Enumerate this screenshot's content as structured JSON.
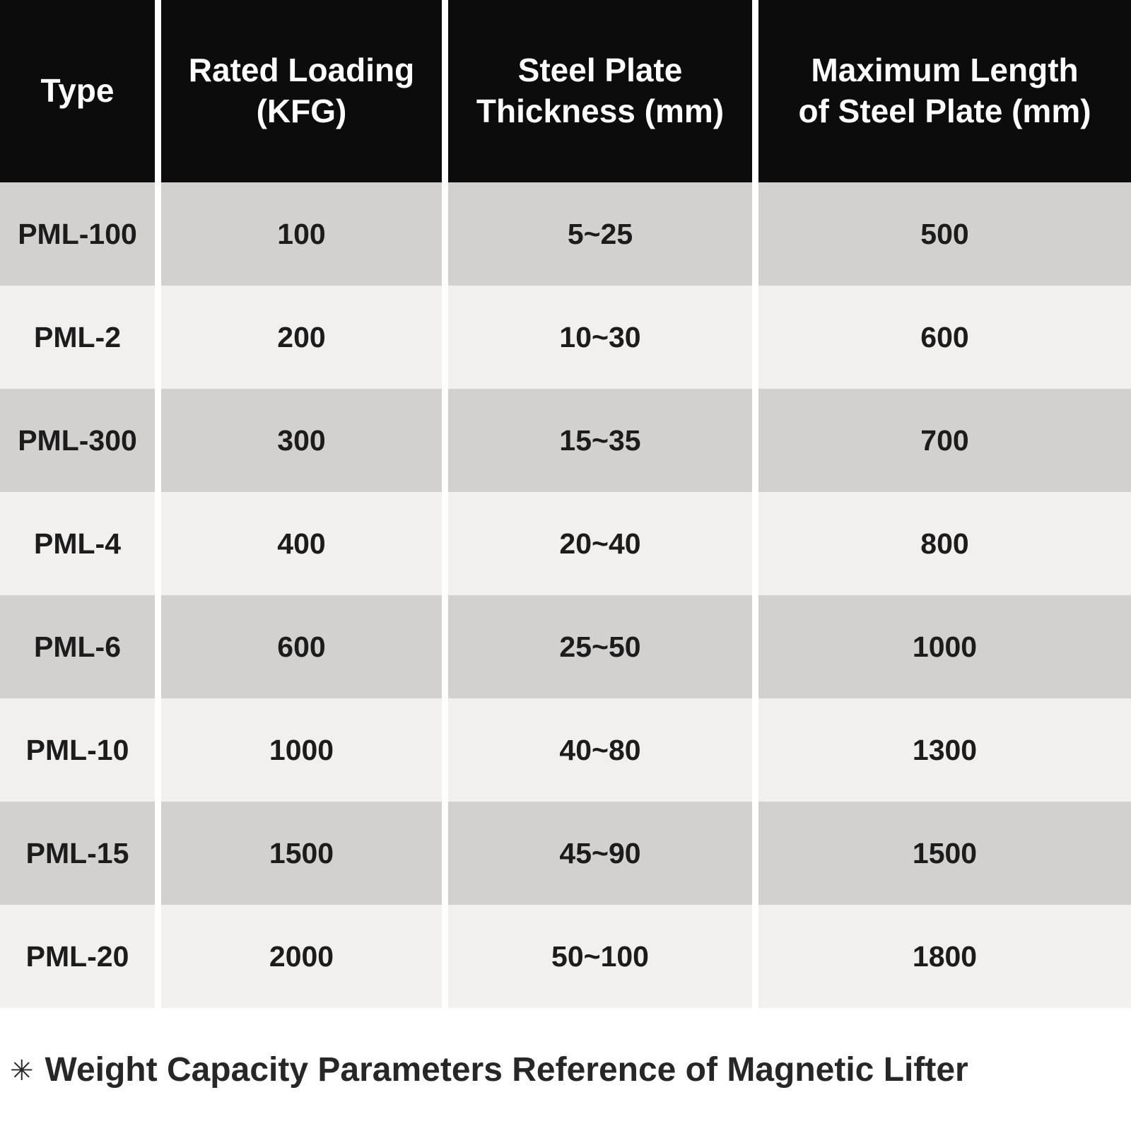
{
  "table": {
    "header": {
      "background": "#0c0c0c",
      "text_color": "#ffffff",
      "columns": [
        {
          "label": "Type"
        },
        {
          "label": "Rated Loading\n(KFG)"
        },
        {
          "label": "Steel Plate\nThickness (mm)"
        },
        {
          "label": "Maximum Length\nof Steel Plate (mm)"
        }
      ]
    },
    "rows": [
      {
        "type": "PML-100",
        "rated_loading": "100",
        "thickness": "5~25",
        "max_length": "500"
      },
      {
        "type": "PML-2",
        "rated_loading": "200",
        "thickness": "10~30",
        "max_length": "600"
      },
      {
        "type": "PML-300",
        "rated_loading": "300",
        "thickness": "15~35",
        "max_length": "700"
      },
      {
        "type": "PML-4",
        "rated_loading": "400",
        "thickness": "20~40",
        "max_length": "800"
      },
      {
        "type": "PML-6",
        "rated_loading": "600",
        "thickness": "25~50",
        "max_length": "1000"
      },
      {
        "type": "PML-10",
        "rated_loading": "1000",
        "thickness": "40~80",
        "max_length": "1300"
      },
      {
        "type": "PML-15",
        "rated_loading": "1500",
        "thickness": "45~90",
        "max_length": "1500"
      },
      {
        "type": "PML-20",
        "rated_loading": "2000",
        "thickness": "50~100",
        "max_length": "1800"
      }
    ],
    "row_colors": {
      "dark": "#d3d1cf",
      "light": "#f2f0ee"
    },
    "cell_text_color": "#1c1c1c"
  },
  "footnote": {
    "symbol": "✳",
    "text": "Weight Capacity Parameters Reference of Magnetic Lifter"
  }
}
